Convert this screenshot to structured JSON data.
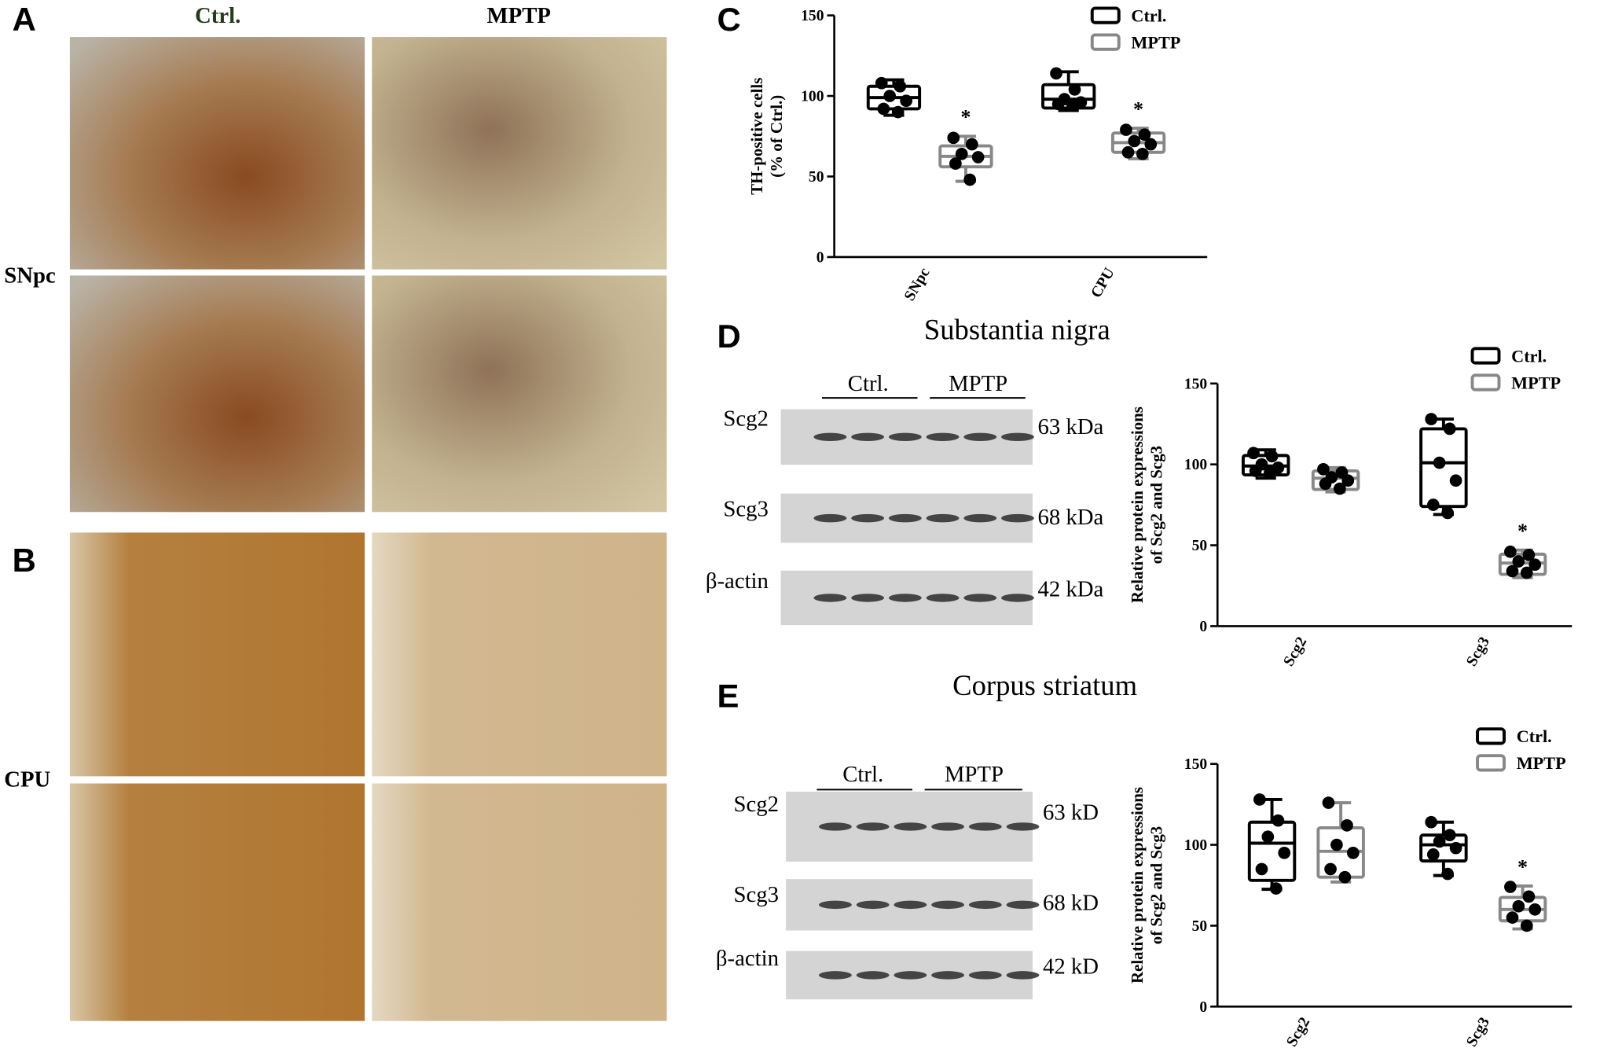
{
  "panel_labels": [
    "A",
    "B",
    "C",
    "D",
    "E"
  ],
  "histology": {
    "columns": [
      "Ctrl.",
      "MPTP"
    ],
    "rows": [
      "SNpc",
      "CPU"
    ]
  },
  "blots": [
    {
      "title": "Substantia nigra",
      "groups": [
        "Ctrl.",
        "MPTP"
      ],
      "proteins": [
        {
          "name": "Scg2",
          "size": "63 kDa"
        },
        {
          "name": "Scg3",
          "size": "68 kDa"
        },
        {
          "name": "β-actin",
          "size": "42 kDa"
        }
      ]
    },
    {
      "title": "Corpus striatum",
      "groups": [
        "Ctrl.",
        "MPTP"
      ],
      "proteins": [
        {
          "name": "Scg2",
          "size": "63 kD"
        },
        {
          "name": "Scg3",
          "size": "68 kD"
        },
        {
          "name": "β-actin",
          "size": "42 kD"
        }
      ]
    }
  ],
  "chart_data": [
    {
      "type": "box",
      "ylabel": [
        "TH-positive cells",
        "(% of Ctrl.)"
      ],
      "categories": [
        "SNpc",
        "CPU"
      ],
      "ylim": [
        0,
        150
      ],
      "yticks": [
        0,
        50,
        100,
        150
      ],
      "series": [
        {
          "name": "Ctrl.",
          "color": "#000000",
          "boxes": [
            {
              "min": 88,
              "q1": 92,
              "median": 99,
              "q3": 106,
              "max": 110,
              "points": [
                108,
                106,
                100,
                97,
                92,
                90
              ]
            },
            {
              "min": 91,
              "q1": 92.5,
              "median": 98,
              "q3": 107,
              "max": 115,
              "points": [
                114,
                104,
                98,
                96,
                95,
                94
              ]
            }
          ]
        },
        {
          "name": "MPTP",
          "color": "#888888",
          "significance": [
            "*",
            "*"
          ],
          "boxes": [
            {
              "min": 47,
              "q1": 56,
              "median": 62.5,
              "q3": 69,
              "max": 75,
              "points": [
                74,
                70,
                64,
                62,
                58,
                48
              ]
            },
            {
              "min": 61,
              "q1": 65,
              "median": 71,
              "q3": 77,
              "max": 80,
              "points": [
                79,
                76,
                72,
                70,
                65,
                64
              ]
            }
          ]
        }
      ]
    },
    {
      "type": "box",
      "ylabel": [
        "Relative protein expressions",
        "of Scg2 and Scg3"
      ],
      "categories": [
        "Scg2",
        "Scg3"
      ],
      "ylim": [
        0,
        150
      ],
      "yticks": [
        0,
        50,
        100,
        150
      ],
      "series": [
        {
          "name": "Ctrl.",
          "color": "#000000",
          "boxes": [
            {
              "min": 91.5,
              "q1": 93.5,
              "median": 99,
              "q3": 105.5,
              "max": 109,
              "points": [
                107,
                105,
                100,
                98,
                96,
                95
              ]
            },
            {
              "min": 69,
              "q1": 74,
              "median": 101,
              "q3": 122,
              "max": 128,
              "points": [
                128,
                122,
                101,
                90,
                75,
                70
              ]
            }
          ]
        },
        {
          "name": "MPTP",
          "color": "#888888",
          "significance": [
            null,
            "*"
          ],
          "boxes": [
            {
              "min": 83,
              "q1": 84.5,
              "median": 91.5,
              "q3": 96,
              "max": 98,
              "points": [
                97,
                95,
                92,
                90,
                88,
                85
              ]
            },
            {
              "min": 30,
              "q1": 32,
              "median": 39,
              "q3": 44.5,
              "max": 47,
              "points": [
                46,
                44,
                40,
                38,
                34,
                33
              ]
            }
          ]
        }
      ]
    },
    {
      "type": "box",
      "ylabel": [
        "Relative protein expressions",
        "of Scg2 and Scg3"
      ],
      "categories": [
        "Scg2",
        "Scg3"
      ],
      "ylim": [
        0,
        150
      ],
      "yticks": [
        0,
        50,
        100,
        150
      ],
      "series": [
        {
          "name": "Ctrl.",
          "color": "#000000",
          "boxes": [
            {
              "min": 72.5,
              "q1": 78,
              "median": 101,
              "q3": 114,
              "max": 128,
              "points": [
                128,
                115,
                105,
                95,
                85,
                73
              ]
            },
            {
              "min": 81,
              "q1": 90,
              "median": 100,
              "q3": 106,
              "max": 114,
              "points": [
                114,
                106,
                102,
                98,
                94,
                82
              ]
            }
          ]
        },
        {
          "name": "MPTP",
          "color": "#888888",
          "significance": [
            null,
            "*"
          ],
          "boxes": [
            {
              "min": 77,
              "q1": 80,
              "median": 96,
              "q3": 110.5,
              "max": 126,
              "points": [
                126,
                112,
                100,
                95,
                85,
                80
              ]
            },
            {
              "min": 48,
              "q1": 53,
              "median": 60,
              "q3": 67.5,
              "max": 74.5,
              "points": [
                74,
                68,
                62,
                60,
                55,
                50
              ]
            }
          ]
        }
      ]
    }
  ]
}
